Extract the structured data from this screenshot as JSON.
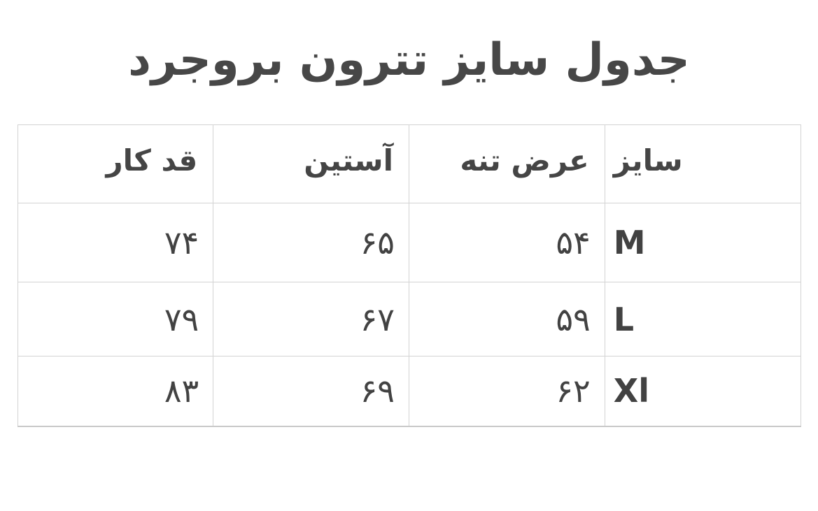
{
  "title": "جدول سایز تترون بروجرد",
  "table": {
    "name": "size-chart",
    "headers": {
      "size": "سایز",
      "body_width": "عرض تنه",
      "sleeve": "آستین",
      "length": "قد کار"
    },
    "rows": [
      {
        "size": "M",
        "body_width": "۵۴",
        "sleeve": "۶۵",
        "length": "۷۴"
      },
      {
        "size": "L",
        "body_width": "۵۹",
        "sleeve": "۶۷",
        "length": "۷۹"
      },
      {
        "size": "Xl",
        "body_width": "۶۲",
        "sleeve": "۶۹",
        "length": "۸۳"
      }
    ]
  },
  "colors": {
    "text": "#454545",
    "border": "#d3d3d3",
    "background": "#ffffff"
  }
}
